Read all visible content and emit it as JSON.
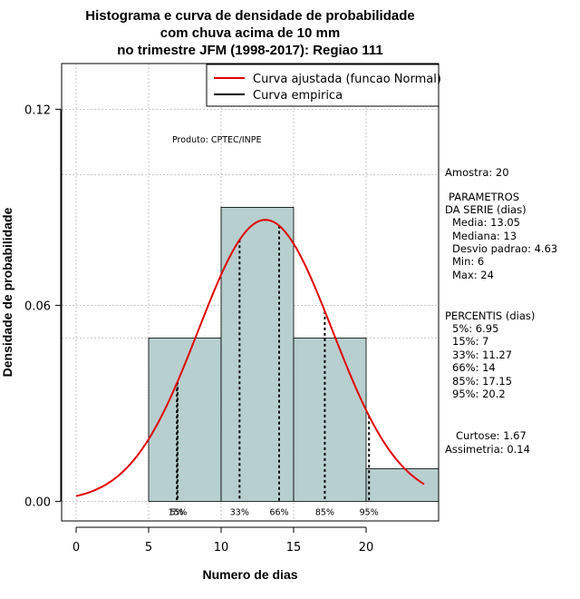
{
  "chart_data": {
    "type": "bar",
    "title_lines": [
      "Histograma e curva de densidade de probabilidade",
      "com chuva acima de 10 mm",
      "no trimestre JFM (1998-2017): Regiao 111"
    ],
    "xlabel": "Numero de dias",
    "ylabel": "Densidade de probabilidade",
    "xlim": [
      -1,
      25
    ],
    "ylim": [
      -0.006,
      0.134
    ],
    "x_ticks": [
      0,
      5,
      10,
      15,
      20
    ],
    "x_tick_labels": [
      "0",
      "5",
      "10",
      "15",
      "20"
    ],
    "y_ticks": [
      0.0,
      0.06,
      0.12
    ],
    "y_tick_labels": [
      "0.00",
      "0.06",
      "0.12"
    ],
    "grid": true,
    "grid_x": [
      0,
      5,
      10,
      15,
      20
    ],
    "grid_y": [
      0.0,
      0.05,
      0.06,
      0.1,
      0.12
    ],
    "bins": [
      {
        "x0": 5,
        "x1": 10,
        "density": 0.05
      },
      {
        "x0": 10,
        "x1": 15,
        "density": 0.09
      },
      {
        "x0": 15,
        "x1": 20,
        "density": 0.05
      },
      {
        "x0": 20,
        "x1": 25,
        "density": 0.01
      }
    ],
    "normal_curve": {
      "mean": 13.05,
      "sd": 4.63,
      "x_from": 0,
      "x_to": 24
    },
    "percentile_lines": [
      {
        "label": "5%",
        "value": 6.95
      },
      {
        "label": "15%",
        "value": 7
      },
      {
        "label": "33%",
        "value": 11.27
      },
      {
        "label": "66%",
        "value": 14
      },
      {
        "label": "85%",
        "value": 17.15
      },
      {
        "label": "95%",
        "value": 20.2
      }
    ],
    "legend": {
      "position": "top-right",
      "entries": [
        {
          "label": "Curva ajustada (funcao Normal)",
          "color": "#e00000"
        },
        {
          "label": "Curva empirica",
          "color": "#000000"
        }
      ]
    },
    "annotation": "Produto: CPTEC/INPE",
    "colors": {
      "bar_fill": "#b7cfcf",
      "curve": "#e00000",
      "grid": "#b8b8b8"
    }
  },
  "stats_panel": {
    "sample": "Amostra: 20",
    "params_title_1": "PARAMETROS",
    "params_title_2": "DA SERIE (dias)",
    "params": [
      "Media: 13.05",
      "Mediana: 13",
      "Desvio padrao: 4.63",
      "Min: 6",
      "Max: 24"
    ],
    "percentis_title": "PERCENTIS (dias)",
    "percentis": [
      "5%: 6.95",
      "15%: 7",
      "33%: 11.27",
      "66%: 14",
      "85%: 17.15",
      "95%: 20.2"
    ],
    "curtose": "Curtose: 1.67",
    "assimetria": "Assimetria: 0.14"
  }
}
